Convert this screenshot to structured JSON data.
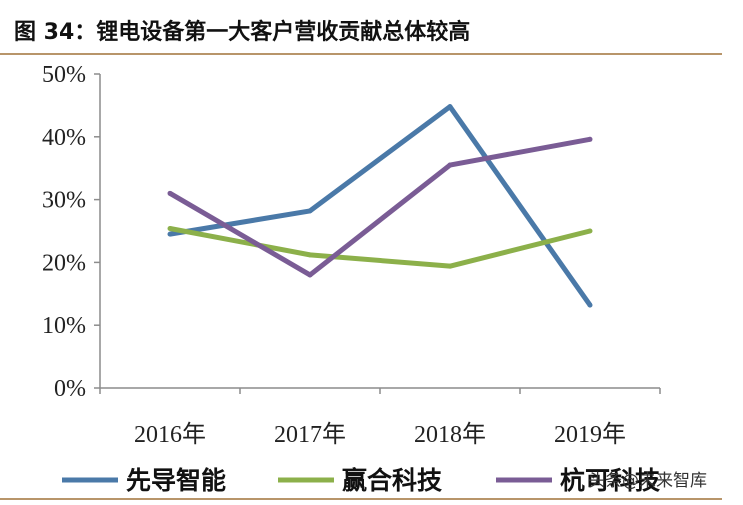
{
  "figure": {
    "title": "图 34：锂电设备第一大客户营收贡献总体较高"
  },
  "watermark": "头条@未来智库",
  "colors": {
    "rule": "#b8956a",
    "axis": "#8c8c8c"
  },
  "chart_data": {
    "type": "line",
    "categories": [
      "2016年",
      "2017年",
      "2018年",
      "2019年"
    ],
    "ylim": [
      0,
      50
    ],
    "yticks": [
      0,
      10,
      20,
      30,
      40,
      50
    ],
    "ytick_labels": [
      "0%",
      "10%",
      "20%",
      "30%",
      "40%",
      "50%"
    ],
    "grid": false,
    "legend_position": "bottom",
    "series": [
      {
        "name": "先导智能",
        "color": "#4a79a8",
        "values": [
          24.5,
          28.2,
          44.8,
          13.2
        ]
      },
      {
        "name": "赢合科技",
        "color": "#8cb04a",
        "values": [
          25.4,
          21.2,
          19.4,
          25.0
        ]
      },
      {
        "name": "杭可科技",
        "color": "#7a5c95",
        "values": [
          31.0,
          18.0,
          35.5,
          39.6
        ]
      }
    ]
  }
}
